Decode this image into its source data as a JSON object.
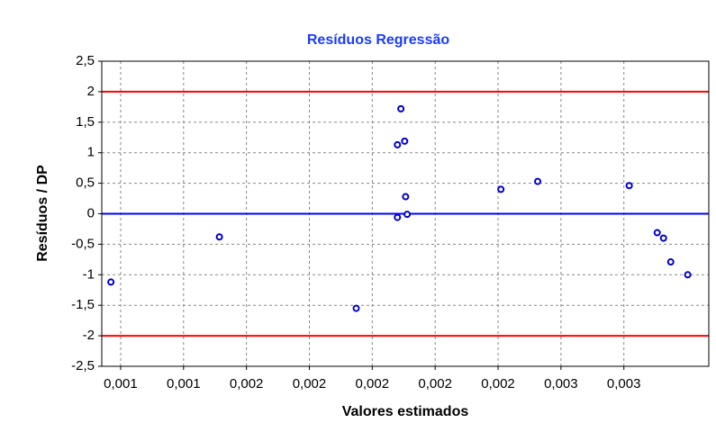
{
  "chart_data": {
    "type": "scatter",
    "title": "Resíduos Regressão",
    "x_label": "Valores estimados",
    "y_label": "Resíduos / DP",
    "x": [
      0.001069,
      0.001414,
      0.001849,
      0.00198,
      0.00198,
      0.001991,
      0.002003,
      0.002006,
      0.002011,
      0.002309,
      0.002426,
      0.002717,
      0.002806,
      0.002826,
      0.002849,
      0.002903
    ],
    "values": [
      -1.12,
      -0.38,
      -1.55,
      1.13,
      -0.06,
      1.72,
      1.19,
      0.28,
      -0.01,
      0.4,
      0.53,
      0.46,
      -0.31,
      -0.4,
      -0.79,
      -1.0
    ],
    "color": "#0000cc",
    "xlim": [
      0.00104,
      0.00297
    ],
    "xticks": [
      {
        "value": 0.0011,
        "label": "0,001"
      },
      {
        "value": 0.0013,
        "label": "0,001"
      },
      {
        "value": 0.0015,
        "label": "0,002"
      },
      {
        "value": 0.0017,
        "label": "0,002"
      },
      {
        "value": 0.0019,
        "label": "0,002"
      },
      {
        "value": 0.0021,
        "label": "0,002"
      },
      {
        "value": 0.0023,
        "label": "0,002"
      },
      {
        "value": 0.0025,
        "label": "0,003"
      },
      {
        "value": 0.0027,
        "label": "0,003"
      }
    ],
    "ylim": [
      -2.5,
      2.5
    ],
    "yticks": [
      {
        "value": 2.5,
        "label": "2,5"
      },
      2,
      {
        "value": 1.5,
        "label": "1,5"
      },
      1,
      {
        "value": 0.5,
        "label": "0,5"
      },
      0,
      {
        "value": -0.5,
        "label": "-0,5"
      },
      -1,
      {
        "value": -1.5,
        "label": "-1,5"
      },
      -2,
      {
        "value": -2.5,
        "label": "-2,5"
      }
    ],
    "reference_lines": [
      {
        "value": 2,
        "color": "#ff0000"
      },
      {
        "value": 0,
        "color": "#0000ff"
      },
      {
        "value": -2,
        "color": "#ff0000"
      }
    ],
    "grid": true
  }
}
